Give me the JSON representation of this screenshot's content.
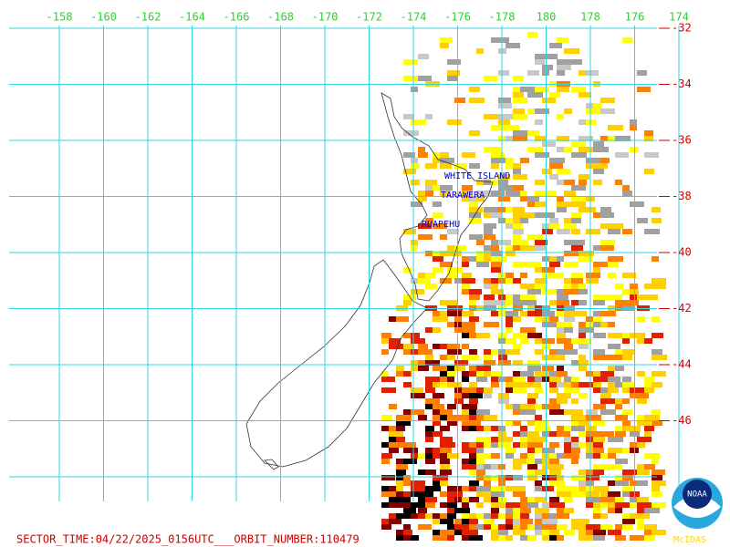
{
  "longitude_labels": [
    "-158",
    "-160",
    "-162",
    "-164",
    "-166",
    "-168",
    "-170",
    "-172",
    "-174",
    "-176",
    "-178",
    "180",
    "178",
    "176",
    "174"
  ],
  "latitude_labels": [
    "-32",
    "-34",
    "-36",
    "-38",
    "-40",
    "-42",
    "-44",
    "-46"
  ],
  "volcanoes": [
    "WHITE ISLAND",
    "TARAWERA",
    "RUAPEHU"
  ],
  "footer": "SECTOR_TIME:04/22/2025_0156UTC___ORBIT_NUMBER:110479",
  "logo": {
    "name": "NOAA",
    "software": "McIDAS"
  }
}
